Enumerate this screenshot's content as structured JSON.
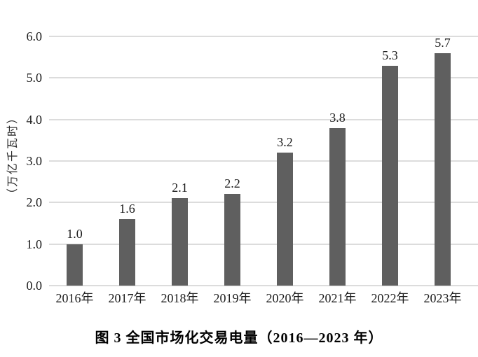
{
  "chart_data": {
    "type": "bar",
    "title": "图 3  全国市场化交易电量（2016—2023 年）",
    "ylabel": "（万亿千瓦时）",
    "categories": [
      "2016年",
      "2017年",
      "2018年",
      "2019年",
      "2020年",
      "2021年",
      "2022年",
      "2023年"
    ],
    "values": [
      1.0,
      1.6,
      2.1,
      2.2,
      3.2,
      3.8,
      5.3,
      5.7
    ],
    "value_labels": [
      "1.0",
      "1.6",
      "2.1",
      "2.2",
      "3.2",
      "3.8",
      "5.3",
      "5.7"
    ],
    "yticks": [
      "6.0",
      "5.0",
      "4.0",
      "3.0",
      "2.0",
      "1.0",
      "0.0"
    ],
    "ylim": [
      0,
      6.0
    ],
    "grid": "horizontal",
    "legend_position": "none",
    "bar_color": "#5f5f5f",
    "grid_color": "#dcdcdc",
    "text_color": "#1c1c1c"
  }
}
